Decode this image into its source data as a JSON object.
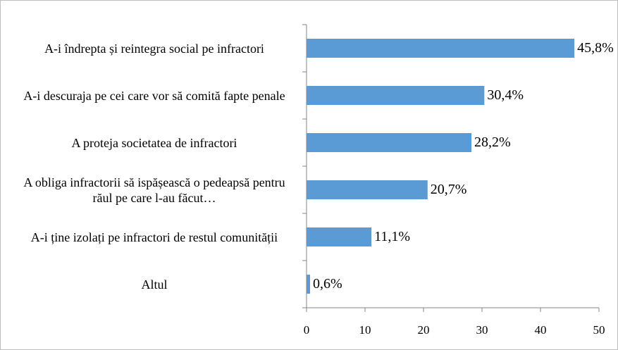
{
  "chart_data": {
    "type": "barh",
    "categories": [
      "A-i îndrepta și reintegra social pe infractori",
      "A-i descuraja pe cei care vor să comită fapte penale",
      "A proteja societatea de infractori",
      "A obliga infractorii să ispășească o pedeapsă pentru răul pe care l-au făcut…",
      "A-i ține izolați pe infractori de restul comunității",
      "Altul"
    ],
    "values": [
      45.8,
      30.4,
      28.2,
      20.7,
      11.1,
      0.6
    ],
    "value_labels": [
      "45,8%",
      "30,4%",
      "28,2%",
      "20,7%",
      "11,1%",
      "0,6%"
    ],
    "color": "#5b9bd5",
    "xlim": [
      0,
      50
    ],
    "xticks": [
      0,
      10,
      20,
      30,
      40,
      50
    ],
    "grid": false
  }
}
